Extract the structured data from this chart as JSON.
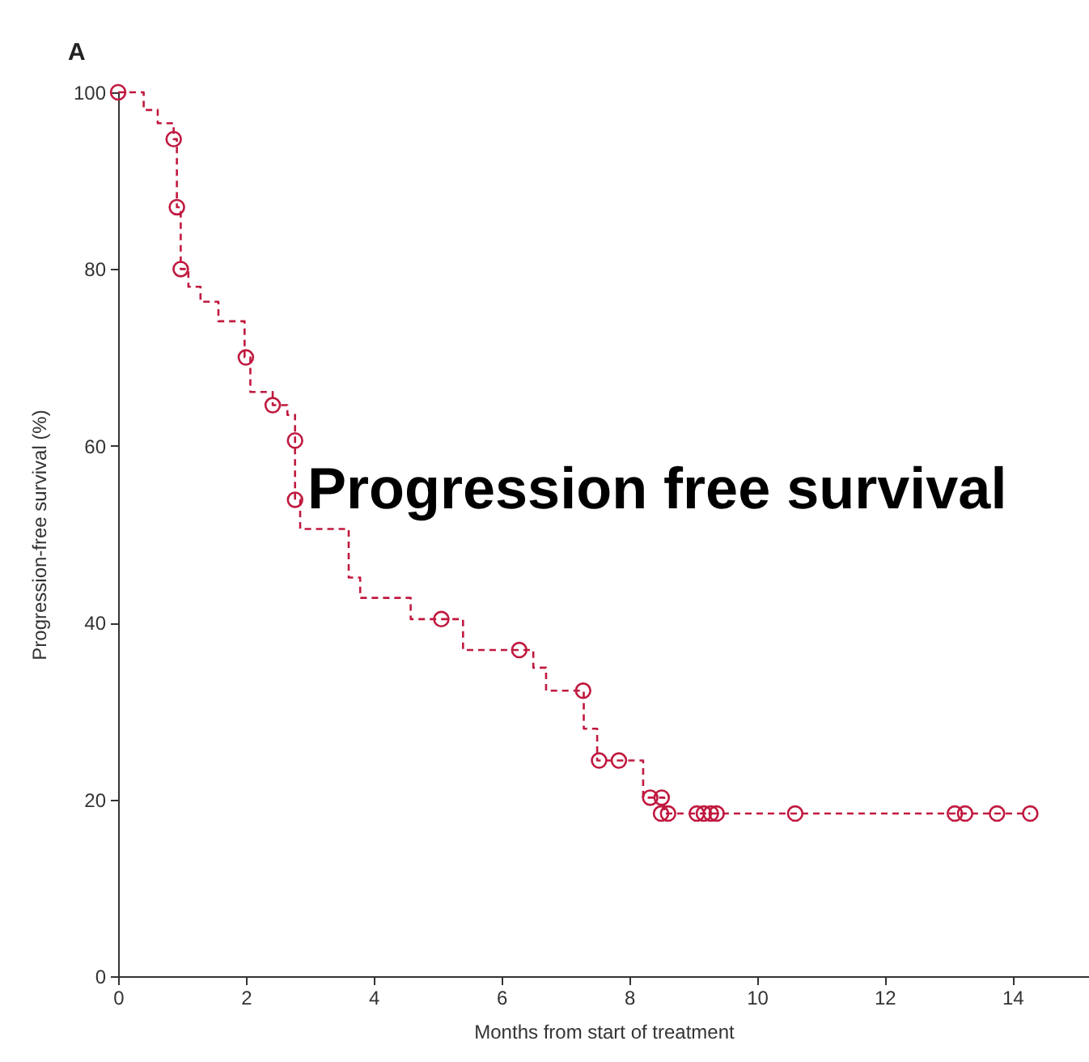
{
  "chart_data": {
    "type": "step",
    "title": "Progression free survival",
    "annotations": [
      "A"
    ],
    "xlabel": "Months from start of treatment",
    "ylabel": "Progression-free survival (%)",
    "xlim": [
      0,
      15.2
    ],
    "xticks": [
      0,
      2,
      4,
      6,
      8,
      10,
      12,
      14
    ],
    "ylim": [
      0,
      100
    ],
    "yticks": [
      0,
      20,
      40,
      60,
      80,
      100
    ],
    "grid": false,
    "series": [
      {
        "color": "#c0193f",
        "line_style": "dashed",
        "x": [
          0,
          0.4,
          0.62,
          0.87,
          0.92,
          0.98,
          1.1,
          1.29,
          1.57,
          1.98,
          2.07,
          2.42,
          2.65,
          2.77,
          2.85,
          3.61,
          3.79,
          4.58,
          5.4,
          6.5,
          6.7,
          7.29,
          7.5,
          8.22,
          8.55,
          14.28
        ],
        "values": [
          100,
          98,
          96.5,
          94.7,
          87,
          80,
          78,
          76.3,
          74.1,
          70,
          66.1,
          64.6,
          63.5,
          53.9,
          50.6,
          45.1,
          42.8,
          40.4,
          36.9,
          34.9,
          32.3,
          28,
          24.4,
          20.2,
          18.4,
          18.4
        ]
      },
      {
        "type": "scatter",
        "color": "#c0193f",
        "marker": "circle",
        "x": [
          0,
          0.87,
          0.92,
          0.98,
          2,
          2.42,
          2.77,
          2.77,
          5.06,
          6.28,
          7.28,
          7.53,
          7.84,
          8.33,
          8.51,
          8.5,
          8.61,
          9.06,
          9.17,
          9.28,
          9.37,
          10.6,
          13.1,
          13.26,
          13.76,
          14.28
        ],
        "values": [
          100,
          94.7,
          87,
          80,
          70,
          64.6,
          60.6,
          53.9,
          40.4,
          36.9,
          32.3,
          24.4,
          24.4,
          20.2,
          20.2,
          18.4,
          18.4,
          18.4,
          18.4,
          18.4,
          18.4,
          18.4,
          18.4,
          18.4,
          18.4,
          18.4
        ]
      }
    ]
  }
}
